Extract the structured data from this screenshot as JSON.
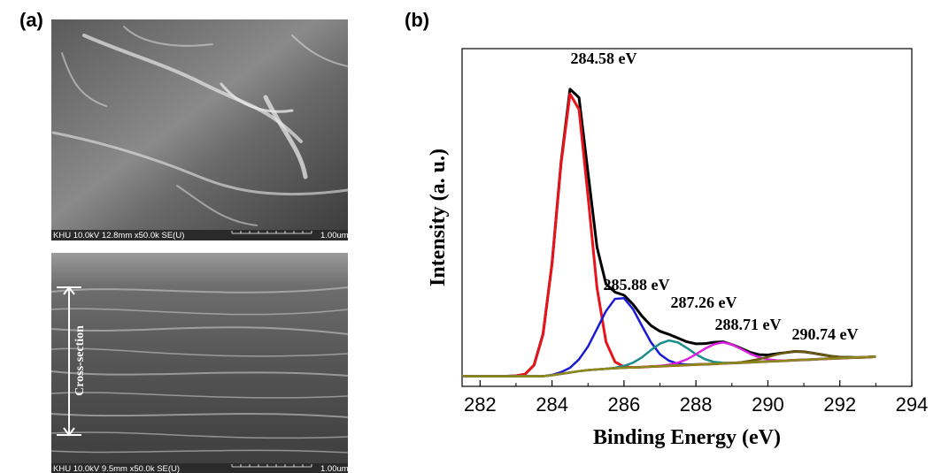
{
  "panel_labels": [
    "(a)",
    "(b)"
  ],
  "sem_images": [
    {
      "info": "KHU 10.0kV 12.8mm x50.0k SE(U)",
      "scale": "1.00um"
    },
    {
      "info": "KHU 10.0kV 9.5mm x50.0k SE(U)",
      "scale": "1.00um",
      "label": "Cross-section"
    }
  ],
  "chart_data": {
    "type": "line",
    "xlabel": "Binding Energy (eV)",
    "ylabel": "Intensity (a. u.)",
    "xlim": [
      281.5,
      294
    ],
    "xticks": [
      282,
      284,
      286,
      288,
      290,
      292,
      294
    ],
    "xminorticks": [
      283,
      285,
      287,
      289,
      291,
      293
    ],
    "ylim": [
      0,
      100
    ],
    "x": [
      281.5,
      281.75,
      282,
      282.25,
      282.5,
      282.75,
      283,
      283.25,
      283.5,
      283.75,
      284,
      284.25,
      284.5,
      284.75,
      285,
      285.25,
      285.5,
      285.75,
      286,
      286.25,
      286.5,
      286.75,
      287,
      287.25,
      287.5,
      287.75,
      288,
      288.25,
      288.5,
      288.75,
      289,
      289.25,
      289.5,
      289.75,
      290,
      290.25,
      290.5,
      290.75,
      291,
      291.25,
      291.5,
      291.75,
      292,
      292.25,
      292.5,
      292.75,
      293
    ],
    "series": [
      {
        "color": "#000000",
        "values": [
          3,
          3,
          3,
          3,
          3,
          3,
          3.1,
          3.6,
          6.3,
          15.5,
          36.4,
          66.3,
          88.0,
          85.5,
          63.3,
          41.2,
          30.3,
          27.9,
          27.0,
          24.3,
          20.8,
          18.0,
          16.3,
          15.4,
          14.3,
          13.2,
          12.6,
          12.65,
          13.05,
          13.2,
          12.4,
          11.3,
          10.1,
          9.4,
          9.3,
          9.65,
          10.0,
          10.35,
          10.25,
          9.85,
          9.4,
          8.95,
          8.65,
          8.6,
          8.55,
          8.65,
          8.8
        ]
      },
      {
        "color": "#e8141c",
        "values": [
          3,
          3,
          3,
          3,
          3,
          3,
          3.1,
          3.6,
          6.3,
          15.4,
          36.3,
          65.8,
          86.6,
          82.0,
          56.3,
          29.2,
          13.2,
          7.25,
          5.8,
          5.6,
          5.7,
          5.85,
          5.95,
          6.1,
          6.2,
          6.3,
          6.45,
          6.55,
          6.65,
          6.8,
          6.9,
          7.0,
          7.15,
          7.25,
          7.4,
          7.5,
          7.6,
          7.75,
          7.85,
          7.95,
          8.1,
          8.2,
          8.3,
          8.45,
          8.55,
          8.65,
          8.8
        ]
      },
      {
        "color": "#1a1ad6",
        "values": [
          3,
          3,
          3,
          3,
          3,
          3,
          3,
          3,
          3,
          3.0,
          3.4,
          4.2,
          5.5,
          8.0,
          11.8,
          17.0,
          22.3,
          25.9,
          26.1,
          22.9,
          17.9,
          13.05,
          9.5,
          7.6,
          6.7,
          6.45,
          6.5,
          6.55,
          6.65,
          6.8,
          6.9,
          7.0,
          7.15,
          7.25,
          7.4,
          7.5,
          7.6,
          7.75,
          7.85,
          7.95,
          8.1,
          8.2,
          8.3,
          8.45,
          8.55,
          8.65,
          8.8
        ]
      },
      {
        "color": "#1a8c8c",
        "values": [
          3,
          3,
          3,
          3,
          3,
          3,
          3,
          3,
          3,
          3,
          3.3,
          3.7,
          4.1,
          4.5,
          4.8,
          5.0,
          5.2,
          5.5,
          6.05,
          7.0,
          8.6,
          10.75,
          12.65,
          13.6,
          13.0,
          11.35,
          9.5,
          8.05,
          7.25,
          7.0,
          6.9,
          7.0,
          7.15,
          7.25,
          7.4,
          7.5,
          7.6,
          7.75,
          7.85,
          7.95,
          8.1,
          8.2,
          8.3,
          8.45,
          8.55,
          8.65,
          8.8
        ]
      },
      {
        "color": "#e020e0",
        "values": [
          3,
          3,
          3,
          3,
          3,
          3,
          3,
          3,
          3,
          3,
          3.3,
          3.7,
          4.1,
          4.5,
          4.8,
          5.0,
          5.2,
          5.35,
          5.5,
          5.6,
          5.7,
          5.85,
          6.05,
          6.4,
          7.0,
          8.0,
          9.5,
          11.15,
          12.45,
          13.0,
          12.4,
          11.1,
          9.7,
          8.6,
          8.0,
          7.7,
          7.6,
          7.75,
          7.85,
          7.95,
          8.1,
          8.2,
          8.3,
          8.45,
          8.55,
          8.65,
          8.8
        ]
      },
      {
        "color": "#6b5a10",
        "values": [
          3,
          3,
          3,
          3,
          3,
          3,
          3,
          3,
          3,
          3,
          3.3,
          3.7,
          4.1,
          4.5,
          4.8,
          5.0,
          5.2,
          5.35,
          5.5,
          5.6,
          5.7,
          5.85,
          5.95,
          6.1,
          6.2,
          6.3,
          6.45,
          6.55,
          6.65,
          6.8,
          6.9,
          7.15,
          7.55,
          8.05,
          8.7,
          9.45,
          10.0,
          10.35,
          10.25,
          9.85,
          9.4,
          8.95,
          8.65,
          8.6,
          8.55,
          8.65,
          8.8
        ]
      },
      {
        "color": "#8a8a1a",
        "values": [
          3,
          3,
          3,
          3,
          3,
          3,
          3,
          3,
          3,
          3,
          3.3,
          3.7,
          4.1,
          4.5,
          4.8,
          5.0,
          5.2,
          5.35,
          5.5,
          5.6,
          5.7,
          5.85,
          5.95,
          6.1,
          6.2,
          6.3,
          6.45,
          6.55,
          6.65,
          6.8,
          6.9,
          7.0,
          7.15,
          7.25,
          7.4,
          7.5,
          7.6,
          7.75,
          7.85,
          7.95,
          8.1,
          8.2,
          8.3,
          8.45,
          8.55,
          8.65,
          8.8
        ]
      }
    ],
    "annotations": [
      "284.58 eV",
      "285.88 eV",
      "287.26 eV",
      "288.71 eV",
      "290.74 eV"
    ]
  }
}
